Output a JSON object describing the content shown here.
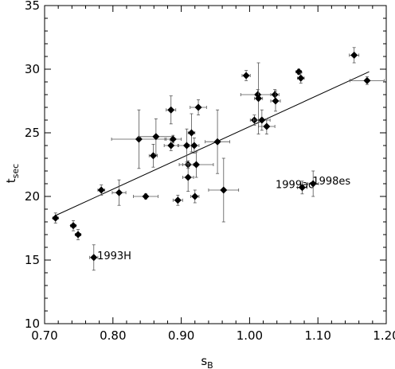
{
  "chart_data": {
    "type": "scatter",
    "xlabel_main": "s",
    "xlabel_sub": "B",
    "ylabel_main": "t",
    "ylabel_sub": "sec",
    "xlim": [
      0.7,
      1.2
    ],
    "ylim": [
      10,
      35
    ],
    "xticks": [
      "0.70",
      "0.80",
      "0.90",
      "1.00",
      "1.10",
      "1.20"
    ],
    "yticks": [
      "10",
      "15",
      "20",
      "25",
      "30",
      "35"
    ],
    "grid": false,
    "fit_line": {
      "x": [
        0.716,
        1.175
      ],
      "y": [
        18.5,
        29.8
      ]
    },
    "points": [
      {
        "x": 0.716,
        "y": 18.3,
        "xerr": 0.004,
        "yerr": 0.4
      },
      {
        "x": 0.742,
        "y": 17.7,
        "xerr": 0.004,
        "yerr": 0.4
      },
      {
        "x": 0.749,
        "y": 17.0,
        "xerr": 0.004,
        "yerr": 0.4
      },
      {
        "x": 0.772,
        "y": 15.2,
        "xerr": 0.006,
        "yerr": 1.0
      },
      {
        "x": 0.783,
        "y": 20.5,
        "xerr": 0.005,
        "yerr": 0.4
      },
      {
        "x": 0.809,
        "y": 20.3,
        "xerr": 0.01,
        "yerr": 1.0
      },
      {
        "x": 0.838,
        "y": 24.5,
        "xerr": 0.04,
        "yerr": 2.3
      },
      {
        "x": 0.848,
        "y": 20.0,
        "xerr": 0.018,
        "yerr": 0.2
      },
      {
        "x": 0.859,
        "y": 23.2,
        "xerr": 0.006,
        "yerr": 0.9
      },
      {
        "x": 0.863,
        "y": 24.7,
        "xerr": 0.025,
        "yerr": 1.4
      },
      {
        "x": 0.885,
        "y": 26.8,
        "xerr": 0.007,
        "yerr": 1.1
      },
      {
        "x": 0.885,
        "y": 24.0,
        "xerr": 0.01,
        "yerr": 0.4
      },
      {
        "x": 0.888,
        "y": 24.5,
        "xerr": 0.012,
        "yerr": 0.3
      },
      {
        "x": 0.895,
        "y": 19.7,
        "xerr": 0.007,
        "yerr": 0.4
      },
      {
        "x": 0.908,
        "y": 24.0,
        "xerr": 0.012,
        "yerr": 1.3
      },
      {
        "x": 0.91,
        "y": 22.5,
        "xerr": 0.008,
        "yerr": 0.3
      },
      {
        "x": 0.91,
        "y": 21.5,
        "xerr": 0.008,
        "yerr": 1.1
      },
      {
        "x": 0.915,
        "y": 25.0,
        "xerr": 0.005,
        "yerr": 1.5
      },
      {
        "x": 0.919,
        "y": 24.0,
        "xerr": 0.007,
        "yerr": 0.6
      },
      {
        "x": 0.92,
        "y": 20.0,
        "xerr": 0.006,
        "yerr": 0.5
      },
      {
        "x": 0.922,
        "y": 22.5,
        "xerr": 0.025,
        "yerr": 1.0
      },
      {
        "x": 0.925,
        "y": 27.0,
        "xerr": 0.012,
        "yerr": 0.6
      },
      {
        "x": 0.953,
        "y": 24.3,
        "xerr": 0.018,
        "yerr": 2.5
      },
      {
        "x": 0.962,
        "y": 20.5,
        "xerr": 0.022,
        "yerr": 2.5
      },
      {
        "x": 0.995,
        "y": 29.5,
        "xerr": 0.006,
        "yerr": 0.4
      },
      {
        "x": 1.007,
        "y": 26.0,
        "xerr": 0.006,
        "yerr": 0.4
      },
      {
        "x": 1.012,
        "y": 28.0,
        "xerr": 0.025,
        "yerr": 0.4
      },
      {
        "x": 1.013,
        "y": 27.7,
        "xerr": 0.006,
        "yerr": 2.8
      },
      {
        "x": 1.018,
        "y": 26.0,
        "xerr": 0.012,
        "yerr": 0.8
      },
      {
        "x": 1.025,
        "y": 25.5,
        "xerr": 0.012,
        "yerr": 0.6
      },
      {
        "x": 1.037,
        "y": 28.0,
        "xerr": 0.006,
        "yerr": 0.4
      },
      {
        "x": 1.038,
        "y": 27.5,
        "xerr": 0.007,
        "yerr": 0.8
      },
      {
        "x": 1.072,
        "y": 29.8,
        "xerr": 0.004,
        "yerr": 0.2
      },
      {
        "x": 1.075,
        "y": 29.3,
        "xerr": 0.005,
        "yerr": 0.4
      },
      {
        "x": 1.077,
        "y": 20.7,
        "xerr": 0.007,
        "yerr": 0.5
      },
      {
        "x": 1.093,
        "y": 21.0,
        "xerr": 0.008,
        "yerr": 1.0
      },
      {
        "x": 1.153,
        "y": 31.1,
        "xerr": 0.007,
        "yerr": 0.6
      },
      {
        "x": 1.172,
        "y": 29.1,
        "xerr": 0.025,
        "yerr": 0.3
      }
    ],
    "annotations": [
      {
        "text": "1993H",
        "x": 0.777,
        "y": 15.3
      },
      {
        "text": "1999ac",
        "x": 1.038,
        "y": 20.9
      },
      {
        "text": "1998es",
        "x": 1.092,
        "y": 21.2
      }
    ]
  }
}
